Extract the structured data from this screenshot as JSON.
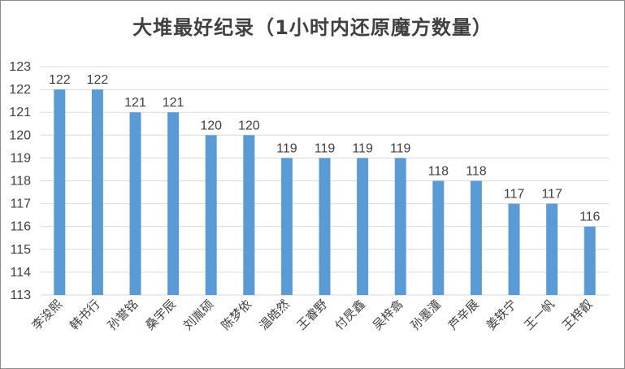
{
  "chart_data": {
    "type": "bar",
    "title": "大堆最好纪录（1小时内还原魔方数量）",
    "xlabel": "",
    "ylabel": "",
    "ylim": [
      113,
      123
    ],
    "yticks": [
      113,
      114,
      115,
      116,
      117,
      118,
      119,
      120,
      121,
      122,
      123
    ],
    "grid": true,
    "legend": "none",
    "bar_color": "#5b9bd5",
    "grid_color": "#d9d9d9",
    "categories": [
      "李浚熙",
      "韩书行",
      "孙誉铭",
      "桑宇辰",
      "刘胤硕",
      "陈梦依",
      "温皓然",
      "王睿野",
      "付昃鑫",
      "吴梓翕",
      "孙墨潼",
      "芦辛展",
      "姜轶宁",
      "王一帆",
      "王梓叡"
    ],
    "values": [
      122,
      122,
      121,
      121,
      120,
      120,
      119,
      119,
      119,
      119,
      118,
      118,
      117,
      117,
      116
    ]
  }
}
